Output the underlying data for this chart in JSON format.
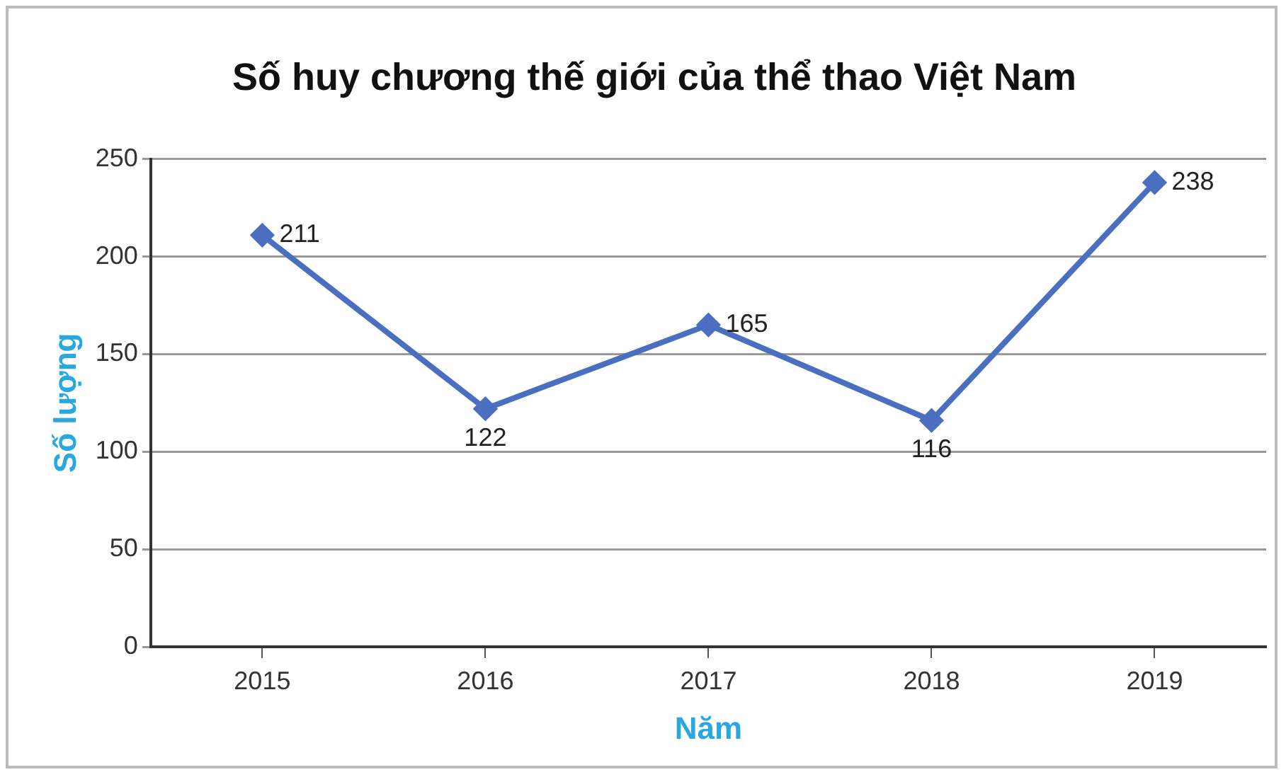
{
  "chart_data": {
    "type": "line",
    "title": "Số huy chương thế giới của thể thao Việt Nam",
    "xlabel": "Năm",
    "ylabel": "Số lượng",
    "categories": [
      "2015",
      "2016",
      "2017",
      "2018",
      "2019"
    ],
    "series": [
      {
        "color": "#4a6fc0",
        "values": [
          211,
          122,
          165,
          116,
          238
        ]
      }
    ],
    "ylim": [
      0,
      250
    ],
    "yticks": [
      0,
      50,
      100,
      150,
      200,
      250
    ],
    "grid": "y",
    "legend": false,
    "marker": "diamond",
    "line_style": "solid",
    "data_labels": true
  }
}
